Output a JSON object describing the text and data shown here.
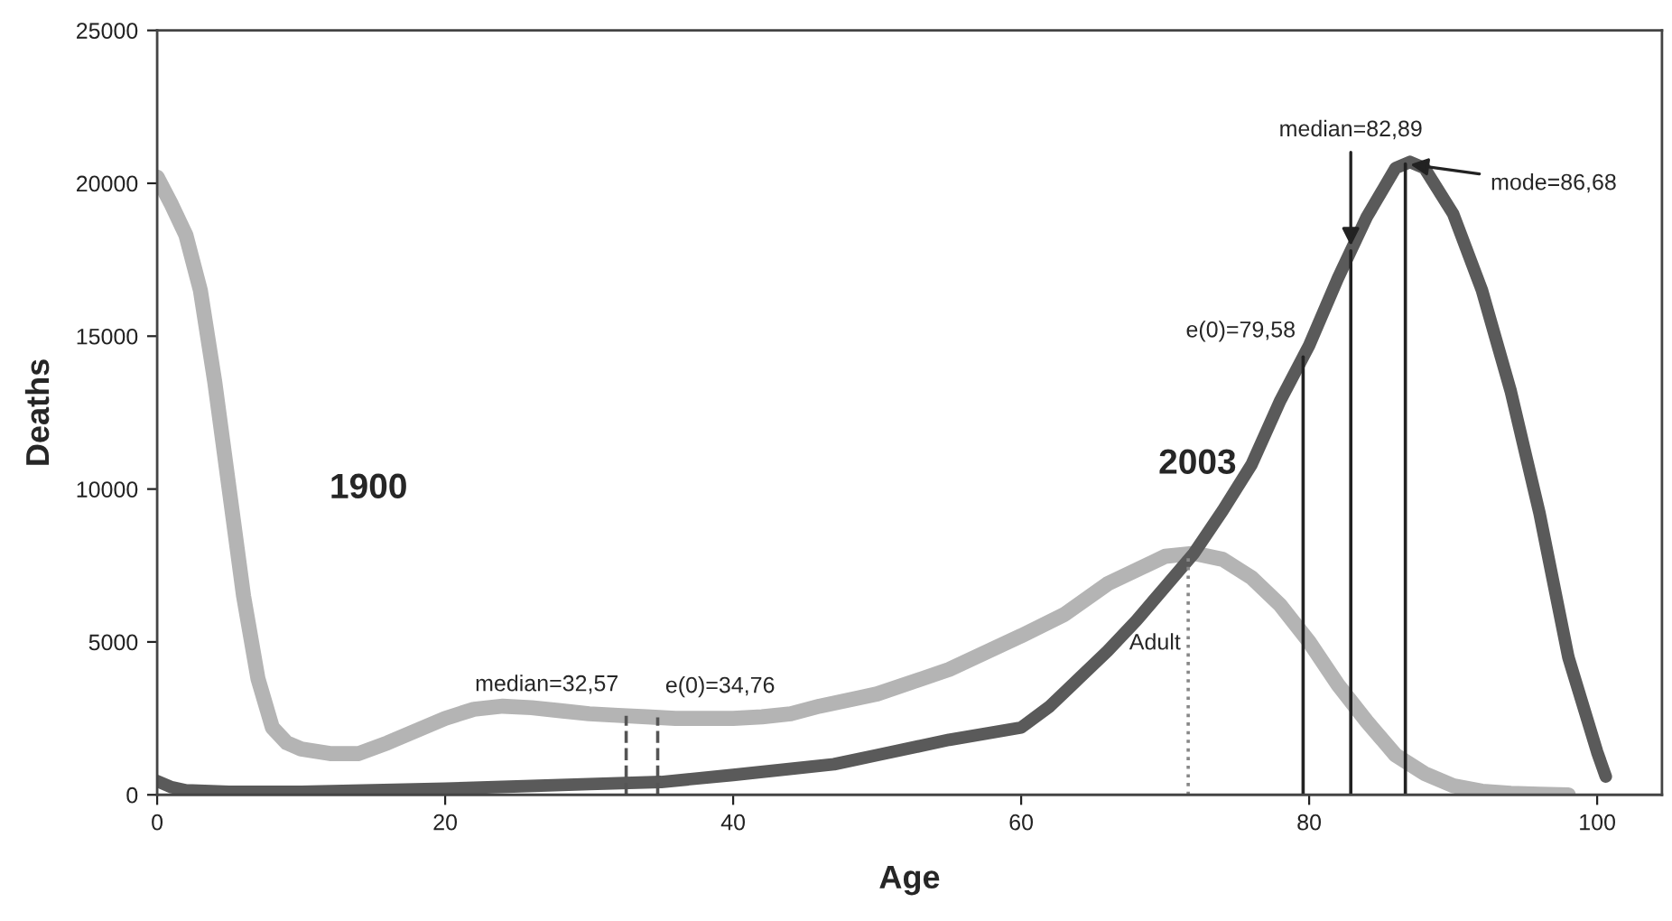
{
  "chart_data": {
    "type": "line",
    "xlabel": "Age",
    "ylabel": "Deaths",
    "xlim": [
      0,
      104.5
    ],
    "ylim": [
      0,
      25000
    ],
    "xticks": [
      0,
      20,
      40,
      60,
      80,
      100
    ],
    "yticks": [
      0,
      5000,
      10000,
      15000,
      20000,
      25000
    ],
    "grid": false,
    "legend": false,
    "marker": "none",
    "line_style": "solid",
    "series": [
      {
        "name": "1900",
        "color": "#b4b4b4",
        "x": [
          0,
          1,
          2,
          3,
          4,
          5,
          6,
          7,
          8,
          9,
          10,
          12,
          14,
          16,
          18,
          20,
          22,
          24,
          26,
          28,
          30,
          32,
          34,
          36,
          38,
          40,
          42,
          44,
          46,
          50,
          55,
          60,
          63,
          66,
          70,
          72,
          74,
          76,
          78,
          80,
          82,
          84,
          86,
          88,
          90,
          92,
          94,
          96,
          98
        ],
        "values": [
          20200,
          19300,
          18300,
          16500,
          13500,
          10000,
          6500,
          3800,
          2200,
          1700,
          1500,
          1350,
          1350,
          1700,
          2100,
          2500,
          2800,
          2900,
          2850,
          2750,
          2650,
          2600,
          2550,
          2500,
          2500,
          2500,
          2550,
          2650,
          2900,
          3300,
          4100,
          5200,
          5900,
          6900,
          7800,
          7900,
          7700,
          7100,
          6200,
          5000,
          3600,
          2400,
          1300,
          700,
          300,
          120,
          50,
          20,
          0
        ]
      },
      {
        "name": "2003",
        "color": "#5a5a5a",
        "x": [
          0,
          1,
          2,
          5,
          10,
          20,
          30,
          35,
          40,
          47,
          50,
          55,
          60,
          62,
          64,
          66,
          68,
          70,
          72,
          74,
          76,
          78,
          80,
          82,
          84,
          86,
          87,
          88,
          90,
          92,
          94,
          96,
          98,
          100,
          100.6
        ],
        "values": [
          450,
          250,
          150,
          100,
          100,
          200,
          350,
          420,
          650,
          1000,
          1300,
          1800,
          2200,
          2900,
          3800,
          4700,
          5700,
          6800,
          7900,
          9300,
          10800,
          12900,
          14700,
          16900,
          18900,
          20500,
          20700,
          20500,
          19000,
          16500,
          13200,
          9200,
          4500,
          1400,
          600
        ]
      }
    ],
    "ref_lines": [
      {
        "axis": "x",
        "value": 32.57,
        "label": "median=32,57",
        "color": "#555555",
        "line_style": "dashed"
      },
      {
        "axis": "x",
        "value": 34.76,
        "label": "e(0)=34,76",
        "color": "#555555",
        "line_style": "dashed"
      },
      {
        "axis": "x",
        "value": 71.6,
        "label": "Adult",
        "color": "#888888",
        "line_style": "dotted"
      },
      {
        "axis": "x",
        "value": 79.58,
        "label": "e(0)=79,58",
        "color": "#222222",
        "line_style": "solid"
      },
      {
        "axis": "x",
        "value": 82.89,
        "label": "median=82,89",
        "color": "#222222",
        "line_style": "solid"
      },
      {
        "axis": "x",
        "value": 86.68,
        "label": "mode=86,68",
        "color": "#222222",
        "line_style": "solid"
      }
    ]
  }
}
